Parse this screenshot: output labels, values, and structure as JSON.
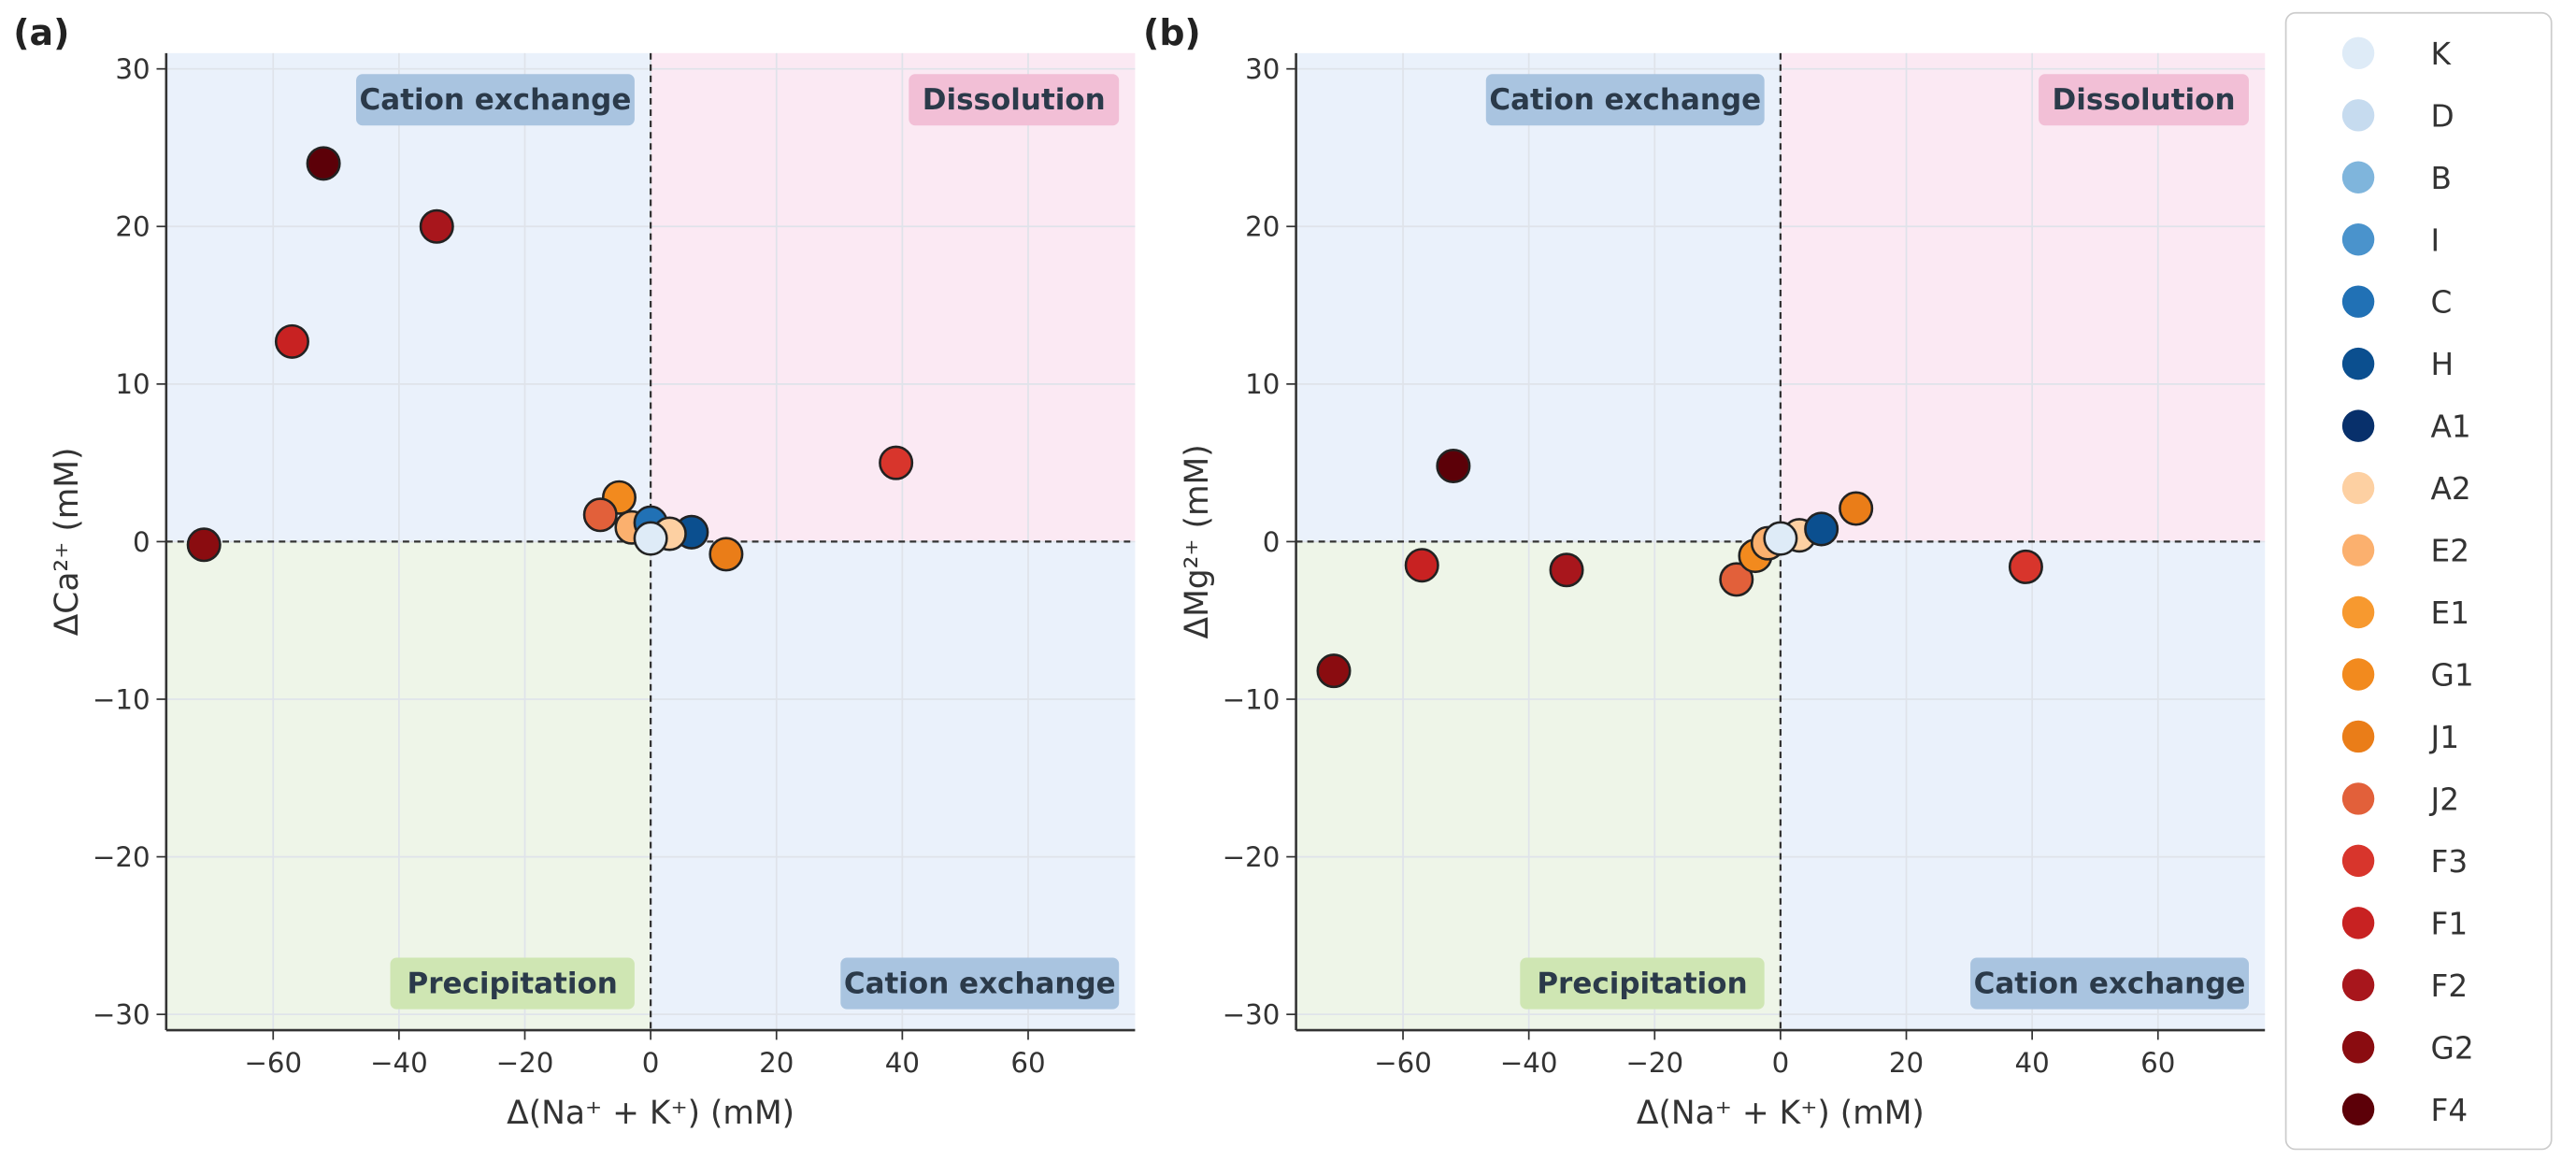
{
  "chart_data": [
    {
      "type": "scatter",
      "panel_label": "(a)",
      "xlabel": "Δ(Na⁺ + K⁺) (mM)",
      "ylabel": "ΔCa²⁺ (mM)",
      "xlim": [
        -77,
        77
      ],
      "ylim": [
        -31,
        31
      ],
      "xticks": [
        -60,
        -40,
        -20,
        0,
        20,
        40,
        60
      ],
      "yticks": [
        -30,
        -20,
        -10,
        0,
        10,
        20,
        30
      ],
      "grid": true,
      "quadrants": {
        "top_left": "Cation exchange",
        "top_right": "Dissolution",
        "bottom_left": "Precipitation",
        "bottom_right": "Cation exchange"
      },
      "points": [
        {
          "label": "G2",
          "x": -71,
          "y": -0.2
        },
        {
          "label": "F4",
          "x": -52,
          "y": 24
        },
        {
          "label": "F2",
          "x": -34,
          "y": 20
        },
        {
          "label": "F1",
          "x": -57,
          "y": 12.7
        },
        {
          "label": "F3",
          "x": 39,
          "y": 5
        },
        {
          "label": "J1",
          "x": 12,
          "y": -0.8
        },
        {
          "label": "G1",
          "x": -5,
          "y": 2.8
        },
        {
          "label": "J2",
          "x": -8,
          "y": 1.7
        },
        {
          "label": "E2",
          "x": -3,
          "y": 0.9
        },
        {
          "label": "C",
          "x": 0,
          "y": 1.2
        },
        {
          "label": "H",
          "x": 6.5,
          "y": 0.6
        },
        {
          "label": "A2",
          "x": 3,
          "y": 0.5
        },
        {
          "label": "K",
          "x": 0,
          "y": 0.2
        }
      ]
    },
    {
      "type": "scatter",
      "panel_label": "(b)",
      "xlabel": "Δ(Na⁺ + K⁺) (mM)",
      "ylabel": "ΔMg²⁺ (mM)",
      "xlim": [
        -77,
        77
      ],
      "ylim": [
        -31,
        31
      ],
      "xticks": [
        -60,
        -40,
        -20,
        0,
        20,
        40,
        60
      ],
      "yticks": [
        -30,
        -20,
        -10,
        0,
        10,
        20,
        30
      ],
      "grid": true,
      "quadrants": {
        "top_left": "Cation exchange",
        "top_right": "Dissolution",
        "bottom_left": "Precipitation",
        "bottom_right": "Cation exchange"
      },
      "points": [
        {
          "label": "G2",
          "x": -71,
          "y": -8.2
        },
        {
          "label": "F4",
          "x": -52,
          "y": 4.8
        },
        {
          "label": "F1",
          "x": -57,
          "y": -1.5
        },
        {
          "label": "F2",
          "x": -34,
          "y": -1.8
        },
        {
          "label": "F3",
          "x": 39,
          "y": -1.6
        },
        {
          "label": "J1",
          "x": 12,
          "y": 2.1
        },
        {
          "label": "J2",
          "x": -7,
          "y": -2.4
        },
        {
          "label": "G1",
          "x": -4,
          "y": -0.9
        },
        {
          "label": "E2",
          "x": -2,
          "y": -0.1
        },
        {
          "label": "A2",
          "x": 3,
          "y": 0.4
        },
        {
          "label": "H",
          "x": 6.5,
          "y": 0.8
        },
        {
          "label": "K",
          "x": 0,
          "y": 0.2
        }
      ]
    }
  ],
  "legend": [
    {
      "label": "K",
      "color": "#deebf7"
    },
    {
      "label": "D",
      "color": "#c6dbef"
    },
    {
      "label": "B",
      "color": "#7fb5dc"
    },
    {
      "label": "I",
      "color": "#4a93cc"
    },
    {
      "label": "C",
      "color": "#2171b5"
    },
    {
      "label": "H",
      "color": "#0b4f8f"
    },
    {
      "label": "A1",
      "color": "#08306b"
    },
    {
      "label": "A2",
      "color": "#fdd0a2"
    },
    {
      "label": "E2",
      "color": "#fbb06e"
    },
    {
      "label": "E1",
      "color": "#f7992f"
    },
    {
      "label": "G1",
      "color": "#f28a1e"
    },
    {
      "label": "J1",
      "color": "#ea7d18"
    },
    {
      "label": "J2",
      "color": "#e2603a"
    },
    {
      "label": "F3",
      "color": "#d8352c"
    },
    {
      "label": "F1",
      "color": "#c82222"
    },
    {
      "label": "F2",
      "color": "#a8161c"
    },
    {
      "label": "G2",
      "color": "#8a0c10"
    },
    {
      "label": "F4",
      "color": "#5c0008"
    }
  ],
  "quadrant_colors": {
    "cation_exchange": "#eaf1fb",
    "dissolution": "#fbe9f3",
    "precipitation": "#eef5e8",
    "label_blue": "#a9c4e0",
    "label_pink": "#f2bfd6",
    "label_green": "#cfe6b3"
  }
}
